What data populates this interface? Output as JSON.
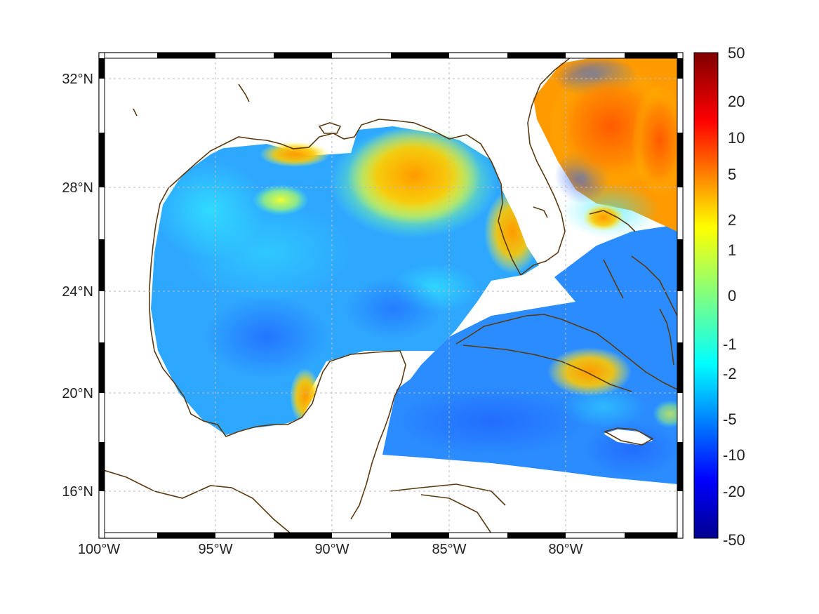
{
  "map": {
    "lon_ticks": [
      "100°W",
      "95°W",
      "90°W",
      "85°W",
      "80°W"
    ],
    "lat_ticks": [
      "32°N",
      "28°N",
      "24°N",
      "20°N",
      "16°N"
    ],
    "lon_range": [
      -100,
      -75
    ],
    "lat_range": [
      15,
      33
    ],
    "grid": true
  },
  "colorbar": {
    "labels": [
      "50",
      "20",
      "10",
      "5",
      "2",
      "1",
      "0",
      "-1",
      "-2",
      "-5",
      "-10",
      "-20",
      "-50"
    ],
    "colors": [
      "#7f0000",
      "#ff0000",
      "#ff8000",
      "#ffff00",
      "#80ff80",
      "#00ffff",
      "#0080ff",
      "#0000ff",
      "#00008f"
    ],
    "colormap": "jet"
  },
  "colors": {
    "coastline": "#5a3a12",
    "grid": "#bbbbbb",
    "frame": "#000000"
  }
}
